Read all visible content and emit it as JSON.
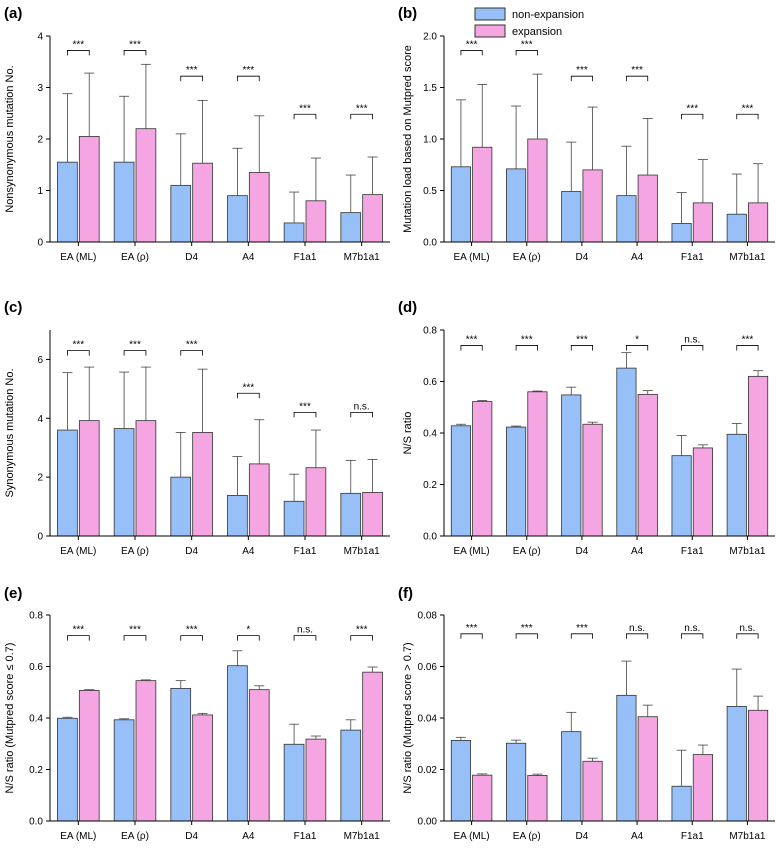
{
  "colors": {
    "non_expansion": "#96c0f7",
    "expansion": "#f5a5e2",
    "error": "#444444"
  },
  "legend": {
    "non_expansion": "non-expansion",
    "expansion": "expansion",
    "position": "top-right"
  },
  "chart_data": [
    {
      "panel": "(a)",
      "type": "bar",
      "ylabel": "Nonsynonymous mutation No.",
      "ylim": [
        0,
        4
      ],
      "yticks": [
        "0",
        "1",
        "2",
        "3",
        "4"
      ],
      "ytick_values": [
        0,
        1,
        2,
        3,
        4
      ],
      "categories": [
        "EA (ML)",
        "EA (ρ)",
        "D4",
        "A4",
        "F1a1",
        "M7b1a1"
      ],
      "series": [
        {
          "name": "non-expansion",
          "values": [
            1.55,
            1.55,
            1.1,
            0.9,
            0.37,
            0.57
          ],
          "errors": [
            1.33,
            1.28,
            1.0,
            0.92,
            0.6,
            0.73
          ]
        },
        {
          "name": "expansion",
          "values": [
            2.05,
            2.2,
            1.53,
            1.35,
            0.8,
            0.92
          ],
          "errors": [
            1.23,
            1.25,
            1.22,
            1.1,
            0.83,
            0.73
          ]
        }
      ],
      "significance": [
        "***",
        "***",
        "***",
        "***",
        "***",
        "***"
      ],
      "sig_y": [
        3.72,
        3.72,
        3.22,
        3.22,
        2.48,
        2.48
      ]
    },
    {
      "panel": "(b)",
      "type": "bar",
      "ylabel": "Mutation load based on Mutpred score",
      "ylim": [
        0,
        2
      ],
      "yticks": [
        "0.0",
        "0.5",
        "1.0",
        "1.5",
        "2.0"
      ],
      "ytick_values": [
        0,
        0.5,
        1,
        1.5,
        2
      ],
      "categories": [
        "EA (ML)",
        "EA (ρ)",
        "D4",
        "A4",
        "F1a1",
        "M7b1a1"
      ],
      "series": [
        {
          "name": "non-expansion",
          "values": [
            0.73,
            0.71,
            0.49,
            0.45,
            0.18,
            0.27
          ],
          "errors": [
            0.65,
            0.61,
            0.48,
            0.48,
            0.3,
            0.39
          ]
        },
        {
          "name": "expansion",
          "values": [
            0.92,
            1.0,
            0.7,
            0.65,
            0.38,
            0.38
          ],
          "errors": [
            0.61,
            0.63,
            0.61,
            0.55,
            0.42,
            0.38
          ]
        }
      ],
      "significance": [
        "***",
        "***",
        "***",
        "***",
        "***",
        "***"
      ],
      "sig_y": [
        1.86,
        1.86,
        1.61,
        1.61,
        1.24,
        1.24
      ]
    },
    {
      "panel": "(c)",
      "type": "bar",
      "ylabel": "Synonymous mutation No.",
      "ylim": [
        0,
        7
      ],
      "yticks": [
        "0",
        "2",
        "4",
        "6"
      ],
      "ytick_values": [
        0,
        2,
        4,
        6
      ],
      "categories": [
        "EA (ML)",
        "EA (ρ)",
        "D4",
        "A4",
        "F1a1",
        "M7b1a1"
      ],
      "series": [
        {
          "name": "non-expansion",
          "values": [
            3.6,
            3.65,
            2.0,
            1.38,
            1.18,
            1.45
          ],
          "errors": [
            1.95,
            1.92,
            1.52,
            1.32,
            0.92,
            1.12
          ]
        },
        {
          "name": "expansion",
          "values": [
            3.92,
            3.92,
            3.52,
            2.45,
            2.32,
            1.48
          ],
          "errors": [
            1.82,
            1.82,
            2.15,
            1.5,
            1.28,
            1.12
          ]
        }
      ],
      "significance": [
        "***",
        "***",
        "***",
        "***",
        "***",
        "n.s."
      ],
      "sig_y": [
        6.3,
        6.3,
        6.3,
        4.85,
        4.2,
        4.2
      ]
    },
    {
      "panel": "(d)",
      "type": "bar",
      "ylabel": "N/S ratio",
      "ylim": [
        0,
        0.8
      ],
      "yticks": [
        "0.0",
        "0.2",
        "0.4",
        "0.6",
        "0.8"
      ],
      "ytick_values": [
        0,
        0.2,
        0.4,
        0.6,
        0.8
      ],
      "categories": [
        "EA (ML)",
        "EA (ρ)",
        "D4",
        "A4",
        "F1a1",
        "M7b1a1"
      ],
      "series": [
        {
          "name": "non-expansion",
          "values": [
            0.428,
            0.423,
            0.548,
            0.652,
            0.312,
            0.395
          ],
          "errors": [
            0.006,
            0.004,
            0.03,
            0.06,
            0.078,
            0.042
          ]
        },
        {
          "name": "expansion",
          "values": [
            0.522,
            0.56,
            0.434,
            0.55,
            0.342,
            0.62
          ],
          "errors": [
            0.004,
            0.003,
            0.008,
            0.015,
            0.012,
            0.022
          ]
        }
      ],
      "significance": [
        "***",
        "***",
        "***",
        "*",
        "n.s.",
        "***"
      ],
      "sig_y": [
        0.74,
        0.74,
        0.74,
        0.74,
        0.74,
        0.74
      ]
    },
    {
      "panel": "(e)",
      "type": "bar",
      "ylabel": "N/S ratio (Mutpred score ≤ 0.7)",
      "ylim": [
        0,
        0.8
      ],
      "yticks": [
        "0.0",
        "0.2",
        "0.4",
        "0.6",
        "0.8"
      ],
      "ytick_values": [
        0,
        0.2,
        0.4,
        0.6,
        0.8
      ],
      "categories": [
        "EA (ML)",
        "EA (ρ)",
        "D4",
        "A4",
        "F1a1",
        "M7b1a1"
      ],
      "series": [
        {
          "name": "non-expansion",
          "values": [
            0.399,
            0.393,
            0.515,
            0.603,
            0.298,
            0.353
          ],
          "errors": [
            0.004,
            0.004,
            0.03,
            0.058,
            0.078,
            0.04
          ]
        },
        {
          "name": "expansion",
          "values": [
            0.507,
            0.545,
            0.412,
            0.51,
            0.318,
            0.578
          ],
          "errors": [
            0.003,
            0.003,
            0.006,
            0.015,
            0.012,
            0.02
          ]
        }
      ],
      "significance": [
        "***",
        "***",
        "***",
        "*",
        "n.s.",
        "***"
      ],
      "sig_y": [
        0.72,
        0.72,
        0.72,
        0.72,
        0.72,
        0.72
      ]
    },
    {
      "panel": "(f)",
      "type": "bar",
      "ylabel": "N/S ratio (Mutpred score > 0.7)",
      "ylim": [
        0,
        0.08
      ],
      "yticks": [
        "0.00",
        "0.02",
        "0.04",
        "0.06",
        "0.08"
      ],
      "ytick_values": [
        0,
        0.02,
        0.04,
        0.06,
        0.08
      ],
      "categories": [
        "EA (ML)",
        "EA (ρ)",
        "D4",
        "A4",
        "F1a1",
        "M7b1a1"
      ],
      "series": [
        {
          "name": "non-expansion",
          "values": [
            0.0313,
            0.0302,
            0.0347,
            0.0488,
            0.0135,
            0.0445
          ],
          "errors": [
            0.0012,
            0.0012,
            0.0075,
            0.0133,
            0.014,
            0.0145
          ]
        },
        {
          "name": "expansion",
          "values": [
            0.0178,
            0.0177,
            0.0232,
            0.0405,
            0.0258,
            0.043
          ],
          "errors": [
            0.0005,
            0.0005,
            0.0012,
            0.0045,
            0.0037,
            0.0055
          ]
        }
      ],
      "significance": [
        "***",
        "***",
        "***",
        "n.s.",
        "n.s.",
        "n.s."
      ],
      "sig_y": [
        0.0727,
        0.0727,
        0.0727,
        0.0727,
        0.0727,
        0.0727
      ]
    }
  ]
}
